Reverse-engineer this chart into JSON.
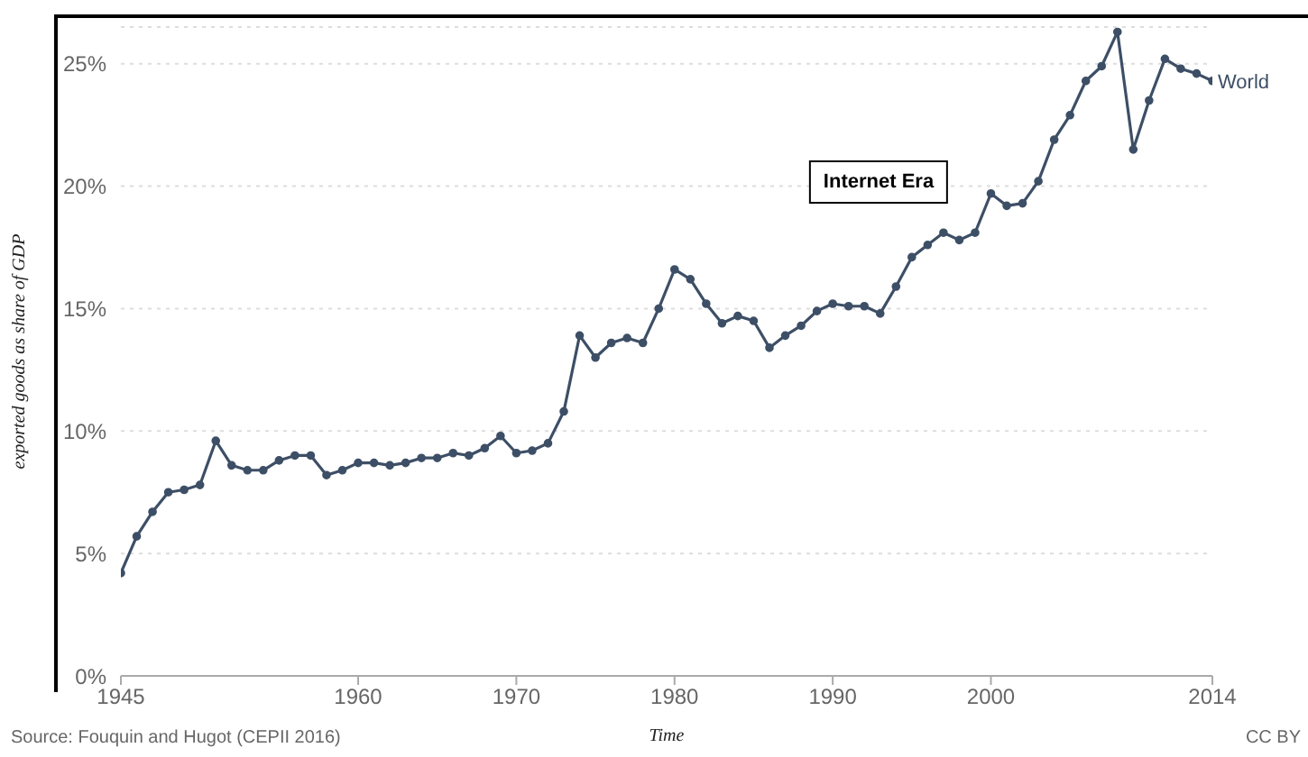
{
  "chart_data": {
    "type": "line",
    "xlabel": "Time",
    "ylabel": "exported goods as share of GDP",
    "x": [
      1945,
      1946,
      1947,
      1948,
      1949,
      1950,
      1951,
      1952,
      1953,
      1954,
      1955,
      1956,
      1957,
      1958,
      1959,
      1960,
      1961,
      1962,
      1963,
      1964,
      1965,
      1966,
      1967,
      1968,
      1969,
      1970,
      1971,
      1972,
      1973,
      1974,
      1975,
      1976,
      1977,
      1978,
      1979,
      1980,
      1981,
      1982,
      1983,
      1984,
      1985,
      1986,
      1987,
      1988,
      1989,
      1990,
      1991,
      1992,
      1993,
      1994,
      1995,
      1996,
      1997,
      1998,
      1999,
      2000,
      2001,
      2002,
      2003,
      2004,
      2005,
      2006,
      2007,
      2008,
      2009,
      2010,
      2011,
      2012,
      2013,
      2014
    ],
    "series": [
      {
        "name": "World",
        "color": "#3d4f66",
        "values": [
          4.2,
          5.7,
          6.7,
          7.5,
          7.6,
          7.8,
          9.6,
          8.6,
          8.4,
          8.4,
          8.8,
          9.0,
          9.0,
          8.2,
          8.4,
          8.7,
          8.7,
          8.6,
          8.7,
          8.9,
          8.9,
          9.1,
          9.0,
          9.3,
          9.8,
          9.1,
          9.2,
          9.5,
          10.8,
          13.9,
          13.0,
          13.6,
          13.8,
          13.6,
          15.0,
          16.6,
          16.2,
          15.2,
          14.4,
          14.7,
          14.5,
          13.4,
          13.9,
          14.3,
          14.9,
          15.2,
          15.1,
          15.1,
          14.8,
          15.9,
          17.1,
          17.6,
          18.1,
          17.8,
          18.1,
          19.7,
          19.2,
          19.3,
          20.2,
          21.9,
          22.9,
          24.3,
          24.9,
          26.3,
          21.5,
          23.5,
          25.2,
          24.8,
          24.6,
          24.3
        ]
      }
    ],
    "xlim": [
      1945,
      2014
    ],
    "xticks": [
      1945,
      1960,
      1970,
      1980,
      1990,
      2000,
      2014
    ],
    "ylim": [
      0,
      26.5
    ],
    "yticks": [
      {
        "value": 0,
        "label": "0%"
      },
      {
        "value": 5,
        "label": "5%"
      },
      {
        "value": 10,
        "label": "10%"
      },
      {
        "value": 15,
        "label": "15%"
      },
      {
        "value": 20,
        "label": "20%"
      },
      {
        "value": 25,
        "label": "25%"
      }
    ],
    "grid": "y",
    "marker": "circle",
    "line_style": "solid",
    "annotations": [
      "Source: Fouquin and Hugot (CEPII 2016)",
      "CC BY",
      "Internet Era"
    ]
  }
}
